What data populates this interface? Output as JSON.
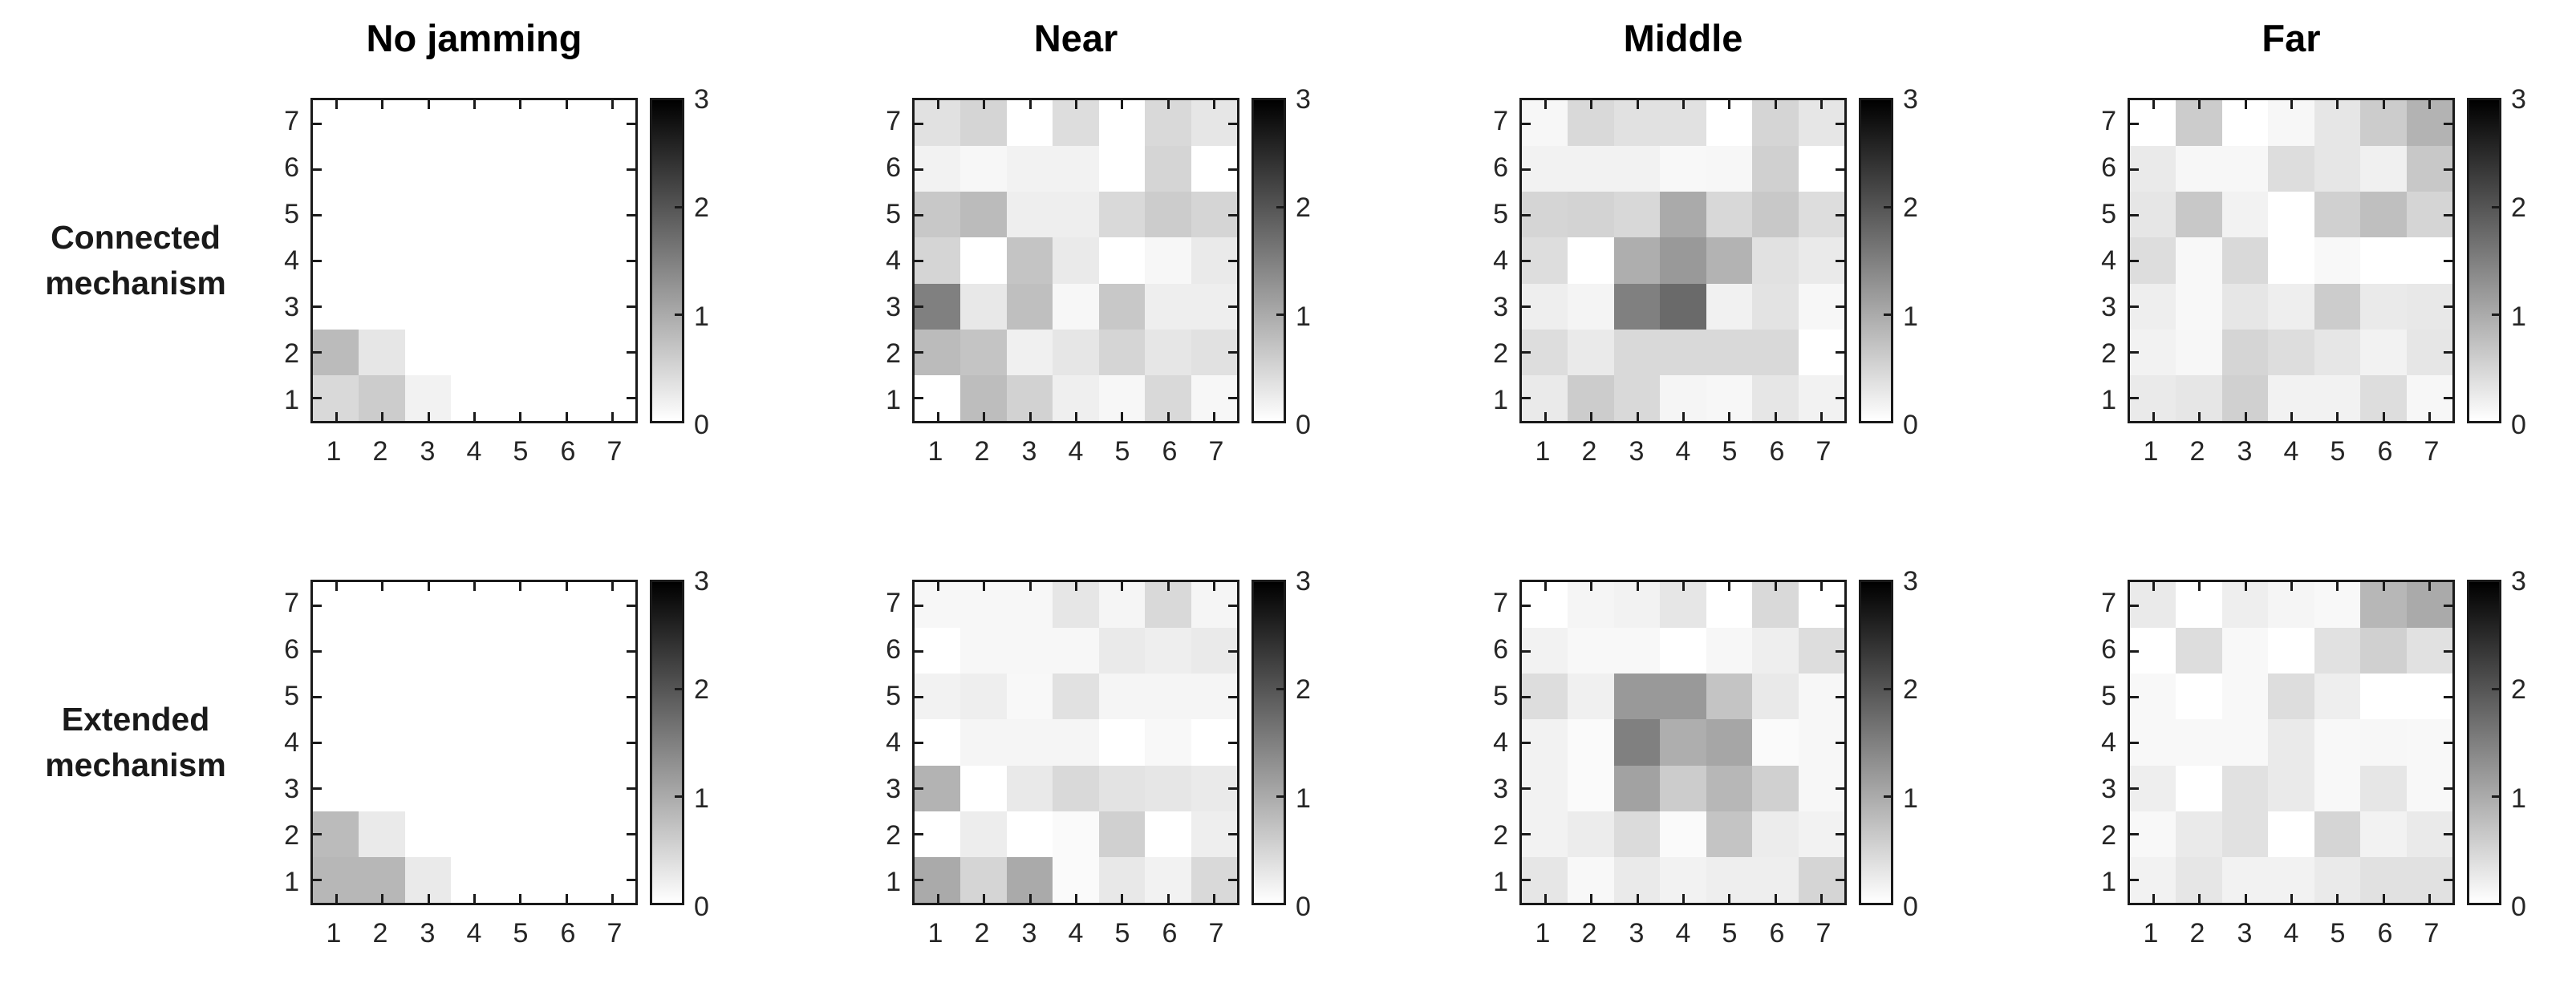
{
  "figure": {
    "background": "#ffffff",
    "text_color": "#262626",
    "axis_color": "#1a1a1a",
    "columns": [
      {
        "title": "No jamming"
      },
      {
        "title": "Near"
      },
      {
        "title": "Middle"
      },
      {
        "title": "Far"
      }
    ],
    "rows": [
      {
        "label_lines": [
          "Connected",
          "mechanism"
        ]
      },
      {
        "label_lines": [
          "Extended",
          "mechanism"
        ]
      }
    ],
    "axes": {
      "x_ticks": [
        "1",
        "2",
        "3",
        "4",
        "5",
        "6",
        "7"
      ],
      "y_ticks": [
        "1",
        "2",
        "3",
        "4",
        "5",
        "6",
        "7"
      ]
    },
    "colorbar": {
      "ticks": [
        "0",
        "1",
        "2",
        "3"
      ],
      "min": 0,
      "max": 3,
      "top_color": "#000000",
      "bottom_color": "#ffffff"
    }
  },
  "chart_data": [
    {
      "type": "heatmap",
      "row": "Connected mechanism",
      "column": "No jamming",
      "x": [
        1,
        2,
        3,
        4,
        5,
        6,
        7
      ],
      "y": [
        1,
        2,
        3,
        4,
        5,
        6,
        7
      ],
      "zlim": [
        0,
        3
      ],
      "colormap": "gray-reversed (0=white, 3=black)",
      "values_rows_top_to_bottom_y7_to_y1": [
        [
          0,
          0,
          0,
          0,
          0,
          0,
          0
        ],
        [
          0,
          0,
          0,
          0,
          0,
          0,
          0
        ],
        [
          0,
          0,
          0,
          0,
          0,
          0,
          0
        ],
        [
          0,
          0,
          0,
          0,
          0,
          0,
          0
        ],
        [
          0,
          0,
          0,
          0,
          0,
          0,
          0
        ],
        [
          0.8,
          0.3,
          0,
          0,
          0,
          0,
          0
        ],
        [
          0.45,
          0.6,
          0.15,
          0,
          0,
          0,
          0
        ]
      ]
    },
    {
      "type": "heatmap",
      "row": "Connected mechanism",
      "column": "Near",
      "x": [
        1,
        2,
        3,
        4,
        5,
        6,
        7
      ],
      "y": [
        1,
        2,
        3,
        4,
        5,
        6,
        7
      ],
      "zlim": [
        0,
        3
      ],
      "colormap": "gray-reversed (0=white, 3=black)",
      "values_rows_top_to_bottom_y7_to_y1": [
        [
          0.35,
          0.5,
          0,
          0.4,
          0,
          0.45,
          0.3
        ],
        [
          0.15,
          0.1,
          0.15,
          0.15,
          0,
          0.5,
          0
        ],
        [
          0.65,
          0.8,
          0.2,
          0.2,
          0.45,
          0.6,
          0.5
        ],
        [
          0.5,
          0,
          0.7,
          0.25,
          0,
          0.1,
          0.25
        ],
        [
          1.5,
          0.27,
          0.75,
          0.1,
          0.65,
          0.2,
          0.2
        ],
        [
          0.8,
          0.7,
          0.18,
          0.3,
          0.5,
          0.3,
          0.35
        ],
        [
          0,
          0.78,
          0.53,
          0.19,
          0.1,
          0.45,
          0.1
        ]
      ]
    },
    {
      "type": "heatmap",
      "row": "Connected mechanism",
      "column": "Middle",
      "x": [
        1,
        2,
        3,
        4,
        5,
        6,
        7
      ],
      "y": [
        1,
        2,
        3,
        4,
        5,
        6,
        7
      ],
      "zlim": [
        0,
        3
      ],
      "colormap": "gray-reversed (0=white, 3=black)",
      "values_rows_top_to_bottom_y7_to_y1": [
        [
          0.1,
          0.45,
          0.35,
          0.35,
          0,
          0.5,
          0.3
        ],
        [
          0.15,
          0.15,
          0.15,
          0.08,
          0.1,
          0.55,
          0
        ],
        [
          0.5,
          0.52,
          0.46,
          1.0,
          0.46,
          0.65,
          0.4
        ],
        [
          0.4,
          0,
          0.95,
          1.2,
          0.9,
          0.35,
          0.25
        ],
        [
          0.2,
          0.13,
          1.5,
          1.75,
          0.16,
          0.33,
          0.1
        ],
        [
          0.4,
          0.25,
          0.45,
          0.45,
          0.45,
          0.45,
          0
        ],
        [
          0.25,
          0.6,
          0.45,
          0.12,
          0.1,
          0.3,
          0.15
        ]
      ]
    },
    {
      "type": "heatmap",
      "row": "Connected mechanism",
      "column": "Far",
      "x": [
        1,
        2,
        3,
        4,
        5,
        6,
        7
      ],
      "y": [
        1,
        2,
        3,
        4,
        5,
        6,
        7
      ],
      "zlim": [
        0,
        3
      ],
      "colormap": "gray-reversed (0=white, 3=black)",
      "values_rows_top_to_bottom_y7_to_y1": [
        [
          0,
          0.6,
          0,
          0.1,
          0.3,
          0.6,
          0.9
        ],
        [
          0.25,
          0.1,
          0.1,
          0.4,
          0.3,
          0.18,
          0.65
        ],
        [
          0.3,
          0.65,
          0.15,
          0,
          0.55,
          0.75,
          0.5
        ],
        [
          0.4,
          0.08,
          0.45,
          0,
          0.08,
          0,
          0
        ],
        [
          0.2,
          0.08,
          0.3,
          0.2,
          0.6,
          0.25,
          0.27
        ],
        [
          0.15,
          0.1,
          0.5,
          0.4,
          0.3,
          0.15,
          0.3
        ],
        [
          0.25,
          0.3,
          0.55,
          0.15,
          0.15,
          0.4,
          0.1
        ]
      ]
    },
    {
      "type": "heatmap",
      "row": "Extended mechanism",
      "column": "No jamming",
      "x": [
        1,
        2,
        3,
        4,
        5,
        6,
        7
      ],
      "y": [
        1,
        2,
        3,
        4,
        5,
        6,
        7
      ],
      "zlim": [
        0,
        3
      ],
      "colormap": "gray-reversed (0=white, 3=black)",
      "values_rows_top_to_bottom_y7_to_y1": [
        [
          0,
          0,
          0,
          0,
          0,
          0,
          0
        ],
        [
          0,
          0,
          0,
          0,
          0,
          0,
          0
        ],
        [
          0,
          0,
          0,
          0,
          0,
          0,
          0
        ],
        [
          0,
          0,
          0,
          0,
          0,
          0,
          0
        ],
        [
          0,
          0,
          0,
          0,
          0,
          0,
          0
        ],
        [
          0.8,
          0.25,
          0,
          0,
          0,
          0,
          0
        ],
        [
          0.85,
          0.85,
          0.25,
          0,
          0,
          0,
          0
        ]
      ]
    },
    {
      "type": "heatmap",
      "row": "Extended mechanism",
      "column": "Near",
      "x": [
        1,
        2,
        3,
        4,
        5,
        6,
        7
      ],
      "y": [
        1,
        2,
        3,
        4,
        5,
        6,
        7
      ],
      "zlim": [
        0,
        3
      ],
      "colormap": "gray-reversed (0=white, 3=black)",
      "values_rows_top_to_bottom_y7_to_y1": [
        [
          0.1,
          0.1,
          0.1,
          0.3,
          0.12,
          0.45,
          0.12
        ],
        [
          0,
          0.1,
          0.1,
          0.1,
          0.25,
          0.2,
          0.25
        ],
        [
          0.15,
          0.2,
          0.08,
          0.35,
          0.12,
          0.12,
          0.12
        ],
        [
          0,
          0.12,
          0.12,
          0.12,
          0,
          0.08,
          0
        ],
        [
          0.9,
          0,
          0.26,
          0.45,
          0.33,
          0.3,
          0.25
        ],
        [
          0,
          0.21,
          0,
          0.06,
          0.55,
          0,
          0.2
        ],
        [
          1.0,
          0.5,
          1.0,
          0.06,
          0.27,
          0.15,
          0.45
        ]
      ]
    },
    {
      "type": "heatmap",
      "row": "Extended mechanism",
      "column": "Middle",
      "x": [
        1,
        2,
        3,
        4,
        5,
        6,
        7
      ],
      "y": [
        1,
        2,
        3,
        4,
        5,
        6,
        7
      ],
      "zlim": [
        0,
        3
      ],
      "colormap": "gray-reversed (0=white, 3=black)",
      "values_rows_top_to_bottom_y7_to_y1": [
        [
          0,
          0.12,
          0.15,
          0.3,
          0,
          0.45,
          0
        ],
        [
          0.15,
          0.08,
          0.08,
          0,
          0.1,
          0.2,
          0.4
        ],
        [
          0.4,
          0.18,
          1.2,
          1.2,
          0.7,
          0.26,
          0.1
        ],
        [
          0.15,
          0.06,
          1.5,
          0.95,
          1.05,
          0.06,
          0.1
        ],
        [
          0.15,
          0.06,
          1.1,
          0.6,
          0.85,
          0.55,
          0.1
        ],
        [
          0.15,
          0.22,
          0.42,
          0.06,
          0.7,
          0.22,
          0.15
        ],
        [
          0.3,
          0.08,
          0.25,
          0.15,
          0.2,
          0.2,
          0.5
        ]
      ]
    },
    {
      "type": "heatmap",
      "row": "Extended mechanism",
      "column": "Far",
      "x": [
        1,
        2,
        3,
        4,
        5,
        6,
        7
      ],
      "y": [
        1,
        2,
        3,
        4,
        5,
        6,
        7
      ],
      "zlim": [
        0,
        3
      ],
      "colormap": "gray-reversed (0=white, 3=black)",
      "values_rows_top_to_bottom_y7_to_y1": [
        [
          0.25,
          0,
          0.2,
          0.12,
          0.08,
          0.85,
          1.0
        ],
        [
          0,
          0.4,
          0.08,
          0,
          0.35,
          0.55,
          0.35
        ],
        [
          0.08,
          0,
          0.08,
          0.4,
          0.2,
          0,
          0
        ],
        [
          0.08,
          0.08,
          0.08,
          0.25,
          0.08,
          0.1,
          0.08
        ],
        [
          0.2,
          0,
          0.35,
          0.25,
          0.08,
          0.3,
          0.08
        ],
        [
          0.08,
          0.25,
          0.35,
          0,
          0.5,
          0.15,
          0.25
        ],
        [
          0.15,
          0.3,
          0.15,
          0.15,
          0.25,
          0.35,
          0.35
        ]
      ]
    }
  ]
}
